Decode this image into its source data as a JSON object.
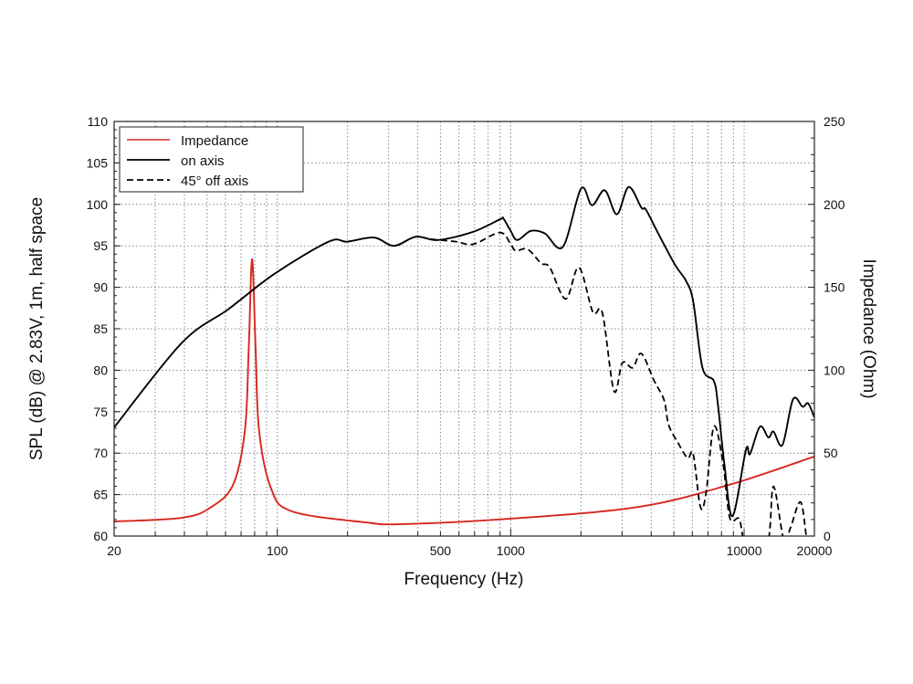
{
  "chart_data": {
    "type": "line",
    "xlabel": "Frequency (Hz)",
    "ylabel": "SPL (dB) @ 2.83V, 1m, half space",
    "y2label": "Impedance (Ohm)",
    "xscale": "log",
    "xlim": [
      20,
      20000
    ],
    "ylim": [
      60,
      110
    ],
    "y2lim": [
      0,
      250
    ],
    "grid": true,
    "legend_position": "top-left",
    "x_ticks": [
      20,
      100,
      500,
      1000,
      10000,
      20000
    ],
    "x_tick_labels": [
      "20",
      "100",
      "500",
      "1000",
      "10000",
      "20000"
    ],
    "y_ticks": [
      60,
      65,
      70,
      75,
      80,
      85,
      90,
      95,
      100,
      105,
      110
    ],
    "y_tick_labels": [
      "60",
      "65",
      "70",
      "75",
      "80",
      "85",
      "90",
      "95",
      "100",
      "105",
      "110"
    ],
    "y2_ticks": [
      0,
      50,
      100,
      150,
      200,
      250
    ],
    "y2_tick_labels": [
      "0",
      "50",
      "100",
      "150",
      "200",
      "250"
    ],
    "series": [
      {
        "name": "Impedance",
        "axis": "right",
        "color": "#d7261e",
        "dash": "solid",
        "x": [
          20,
          39,
          51.5,
          64.7,
          72.7,
          75.5,
          78,
          80.7,
          83.5,
          93.9,
          115,
          237,
          343,
          1000,
          3530,
          8680,
          20000
        ],
        "y": [
          8.8,
          11,
          17,
          31,
          64,
          114,
          167,
          114,
          64,
          29,
          15,
          8.3,
          7.2,
          10.5,
          17.6,
          31,
          48
        ]
      },
      {
        "name": "on axis",
        "axis": "left",
        "color": "#000000",
        "dash": "solid",
        "x": [
          20,
          39,
          62,
          97,
          166,
          199,
          260,
          316,
          393,
          489,
          692,
          900,
          930,
          1000,
          1068,
          1220,
          1400,
          1675,
          2000,
          2230,
          2530,
          2850,
          3200,
          3630,
          3790,
          4230,
          5060,
          5630,
          6050,
          6630,
          7420,
          7720,
          8220,
          8920,
          10180,
          10600,
          11690,
          12700,
          13360,
          14600,
          16200,
          17800,
          18800,
          20000
        ],
        "y": [
          73.1,
          83.3,
          87.4,
          91.6,
          95.5,
          95.5,
          96,
          95,
          96.1,
          95.7,
          96.7,
          98.2,
          98.3,
          96.8,
          95.7,
          96.8,
          96.5,
          94.9,
          101.9,
          99.9,
          101.7,
          98.8,
          102.1,
          99.6,
          99.4,
          96.8,
          92.7,
          90.8,
          88.3,
          80.3,
          78.7,
          75.9,
          68.8,
          62.4,
          70.4,
          69.9,
          73.2,
          71.9,
          72.6,
          71,
          76.5,
          75.6,
          76,
          74.3
        ]
      },
      {
        "name": "45° off axis",
        "axis": "left",
        "color": "#000000",
        "dash": "dashed",
        "x": [
          455,
          584,
          692,
          900,
          1000,
          1050,
          1180,
          1350,
          1470,
          1720,
          1960,
          2250,
          2470,
          2770,
          3010,
          3330,
          3630,
          4120,
          4540,
          4750,
          5220,
          5730,
          6050,
          6500,
          6870,
          7420,
          8120,
          8680,
          9500,
          9950,
          11000,
          12700,
          13360,
          14800,
          15800,
          17450,
          18600,
          20000
        ],
        "y": [
          95.8,
          95.5,
          95.2,
          96.6,
          95.2,
          94.4,
          94.6,
          92.9,
          92.4,
          88.6,
          92.4,
          87,
          86.9,
          77.5,
          80.9,
          80.3,
          82,
          78.7,
          76.4,
          73.4,
          71.2,
          69.4,
          69.9,
          63.5,
          65.2,
          73.2,
          68.8,
          62.2,
          62.1,
          59.5,
          55,
          59.5,
          66,
          59.5,
          61,
          64.1,
          59.5,
          56
        ]
      }
    ]
  }
}
